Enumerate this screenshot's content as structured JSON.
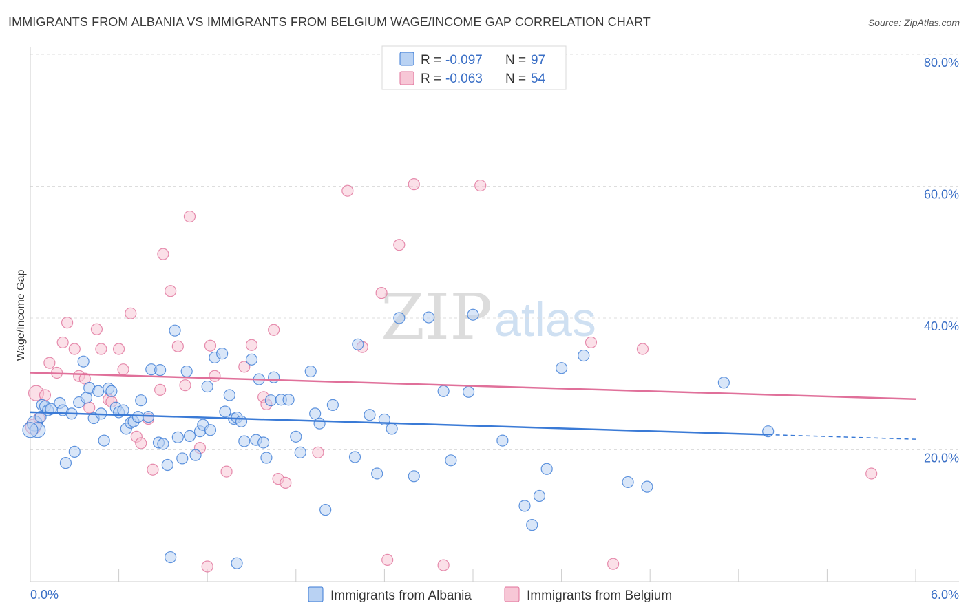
{
  "title": "IMMIGRANTS FROM ALBANIA VS IMMIGRANTS FROM BELGIUM WAGE/INCOME GAP CORRELATION CHART",
  "source": "Source: ZipAtlas.com",
  "watermark": {
    "zip": "ZIP",
    "atlas": "atlas"
  },
  "colors": {
    "albania": "#3a7ad6",
    "albania_fill": "#b9d2f3",
    "belgium": "#e0709a",
    "belgium_fill": "#f7c7d6",
    "axis_text": "#3a6fc6"
  },
  "legend": {
    "rows": [
      {
        "r_label": "R = ",
        "r_value": "-0.097",
        "n_label": "N = ",
        "n_value": "97"
      },
      {
        "r_label": "R = ",
        "r_value": "-0.063",
        "n_label": "N = ",
        "n_value": "54"
      }
    ]
  },
  "chart_data": {
    "type": "scatter",
    "title": "IMMIGRANTS FROM ALBANIA VS IMMIGRANTS FROM BELGIUM WAGE/INCOME GAP CORRELATION CHART",
    "xlabel": "",
    "ylabel": "Wage/Income Gap",
    "xlim": [
      0,
      6
    ],
    "ylim": [
      0,
      80
    ],
    "x_tick_labels": [
      "0.0%",
      "6.0%"
    ],
    "y_ticks": [
      20,
      40,
      60,
      80
    ],
    "y_tick_labels": [
      "20.0%",
      "40.0%",
      "60.0%",
      "80.0%"
    ],
    "grid": true,
    "series": [
      {
        "name": "Immigrants from Albania",
        "r": -0.097,
        "n": 97,
        "trend": {
          "x0": 0,
          "y0": 25.7,
          "x1": 5.0,
          "y1": 22.3,
          "dash_x1": 6.0,
          "dash_y1": 21.6
        },
        "points": [
          [
            0.03,
            24.0
          ],
          [
            0.05,
            23.0
          ],
          [
            0.07,
            25.0
          ],
          [
            0.08,
            26.8
          ],
          [
            0.1,
            26.6
          ],
          [
            0.12,
            26.0
          ],
          [
            0.14,
            26.2
          ],
          [
            0.2,
            27.1
          ],
          [
            0.22,
            26.0
          ],
          [
            0.24,
            18.0
          ],
          [
            0.28,
            25.5
          ],
          [
            0.3,
            19.7
          ],
          [
            0.33,
            27.2
          ],
          [
            0.36,
            33.4
          ],
          [
            0.38,
            27.9
          ],
          [
            0.4,
            29.4
          ],
          [
            0.43,
            24.8
          ],
          [
            0.46,
            28.9
          ],
          [
            0.48,
            25.5
          ],
          [
            0.5,
            21.4
          ],
          [
            0.53,
            29.3
          ],
          [
            0.55,
            28.9
          ],
          [
            0.58,
            26.4
          ],
          [
            0.6,
            25.7
          ],
          [
            0.63,
            26.0
          ],
          [
            0.65,
            23.2
          ],
          [
            0.68,
            24.1
          ],
          [
            0.7,
            24.3
          ],
          [
            0.73,
            25.0
          ],
          [
            0.75,
            27.5
          ],
          [
            0.8,
            25.0
          ],
          [
            0.82,
            32.2
          ],
          [
            0.87,
            21.1
          ],
          [
            0.88,
            32.1
          ],
          [
            0.9,
            20.9
          ],
          [
            0.93,
            17.7
          ],
          [
            0.98,
            38.1
          ],
          [
            1.0,
            21.9
          ],
          [
            1.03,
            18.7
          ],
          [
            1.06,
            31.9
          ],
          [
            1.08,
            22.1
          ],
          [
            1.12,
            19.2
          ],
          [
            1.15,
            22.8
          ],
          [
            1.17,
            23.8
          ],
          [
            1.2,
            29.6
          ],
          [
            1.22,
            23.0
          ],
          [
            1.25,
            34.0
          ],
          [
            1.3,
            34.6
          ],
          [
            1.32,
            25.8
          ],
          [
            1.35,
            28.3
          ],
          [
            1.38,
            24.7
          ],
          [
            1.4,
            24.9
          ],
          [
            1.43,
            24.3
          ],
          [
            1.45,
            21.3
          ],
          [
            1.5,
            33.7
          ],
          [
            1.53,
            21.5
          ],
          [
            1.55,
            30.7
          ],
          [
            1.58,
            21.1
          ],
          [
            1.6,
            18.8
          ],
          [
            1.63,
            27.5
          ],
          [
            1.65,
            31.0
          ],
          [
            1.7,
            27.6
          ],
          [
            1.75,
            27.6
          ],
          [
            1.8,
            22.0
          ],
          [
            1.83,
            19.6
          ],
          [
            1.9,
            31.9
          ],
          [
            1.93,
            25.5
          ],
          [
            1.96,
            24.0
          ],
          [
            2.0,
            10.9
          ],
          [
            2.05,
            26.8
          ],
          [
            2.2,
            18.9
          ],
          [
            2.22,
            36.0
          ],
          [
            2.3,
            25.3
          ],
          [
            2.35,
            16.4
          ],
          [
            2.4,
            24.6
          ],
          [
            2.45,
            23.2
          ],
          [
            2.5,
            40.0
          ],
          [
            2.6,
            16.0
          ],
          [
            2.7,
            40.1
          ],
          [
            2.8,
            28.9
          ],
          [
            2.85,
            18.4
          ],
          [
            2.97,
            28.8
          ],
          [
            3.0,
            40.5
          ],
          [
            3.2,
            21.4
          ],
          [
            3.35,
            11.5
          ],
          [
            3.4,
            8.6
          ],
          [
            3.45,
            13.0
          ],
          [
            3.5,
            17.1
          ],
          [
            3.6,
            32.4
          ],
          [
            3.75,
            34.3
          ],
          [
            4.05,
            15.1
          ],
          [
            4.18,
            14.4
          ],
          [
            4.7,
            30.2
          ],
          [
            5.0,
            22.8
          ],
          [
            0.95,
            3.7
          ],
          [
            1.4,
            2.8
          ],
          [
            0.0,
            23.0
          ]
        ]
      },
      {
        "name": "Immigrants from Belgium",
        "r": -0.063,
        "n": 54,
        "trend": {
          "x0": 0,
          "y0": 31.7,
          "x1": 6.0,
          "y1": 27.7
        },
        "points": [
          [
            0.02,
            23.5
          ],
          [
            0.04,
            28.6
          ],
          [
            0.06,
            24.8
          ],
          [
            0.1,
            28.3
          ],
          [
            0.13,
            33.2
          ],
          [
            0.18,
            31.7
          ],
          [
            0.22,
            36.3
          ],
          [
            0.25,
            39.3
          ],
          [
            0.3,
            35.3
          ],
          [
            0.33,
            31.2
          ],
          [
            0.37,
            30.8
          ],
          [
            0.4,
            26.4
          ],
          [
            0.45,
            38.3
          ],
          [
            0.48,
            35.3
          ],
          [
            0.53,
            27.6
          ],
          [
            0.55,
            27.3
          ],
          [
            0.6,
            35.3
          ],
          [
            0.63,
            32.2
          ],
          [
            0.68,
            40.7
          ],
          [
            0.72,
            22.0
          ],
          [
            0.75,
            21.0
          ],
          [
            0.8,
            24.7
          ],
          [
            0.83,
            17.0
          ],
          [
            0.88,
            29.1
          ],
          [
            0.9,
            49.7
          ],
          [
            0.95,
            44.1
          ],
          [
            1.0,
            35.7
          ],
          [
            1.05,
            29.8
          ],
          [
            1.08,
            55.4
          ],
          [
            1.15,
            20.3
          ],
          [
            1.2,
            2.3
          ],
          [
            1.22,
            35.8
          ],
          [
            1.25,
            31.2
          ],
          [
            1.33,
            16.7
          ],
          [
            1.45,
            32.6
          ],
          [
            1.5,
            35.9
          ],
          [
            1.58,
            28.0
          ],
          [
            1.6,
            26.9
          ],
          [
            1.65,
            38.2
          ],
          [
            1.68,
            15.6
          ],
          [
            1.73,
            15.0
          ],
          [
            1.95,
            19.6
          ],
          [
            2.15,
            59.3
          ],
          [
            2.25,
            35.6
          ],
          [
            2.38,
            43.8
          ],
          [
            2.42,
            3.3
          ],
          [
            2.5,
            51.1
          ],
          [
            2.6,
            60.3
          ],
          [
            2.8,
            2.5
          ],
          [
            3.05,
            60.1
          ],
          [
            3.8,
            36.3
          ],
          [
            3.95,
            2.7
          ],
          [
            4.15,
            35.3
          ],
          [
            5.7,
            16.4
          ]
        ]
      }
    ]
  },
  "bottom_legend": [
    "Immigrants from Albania",
    "Immigrants from Belgium"
  ]
}
